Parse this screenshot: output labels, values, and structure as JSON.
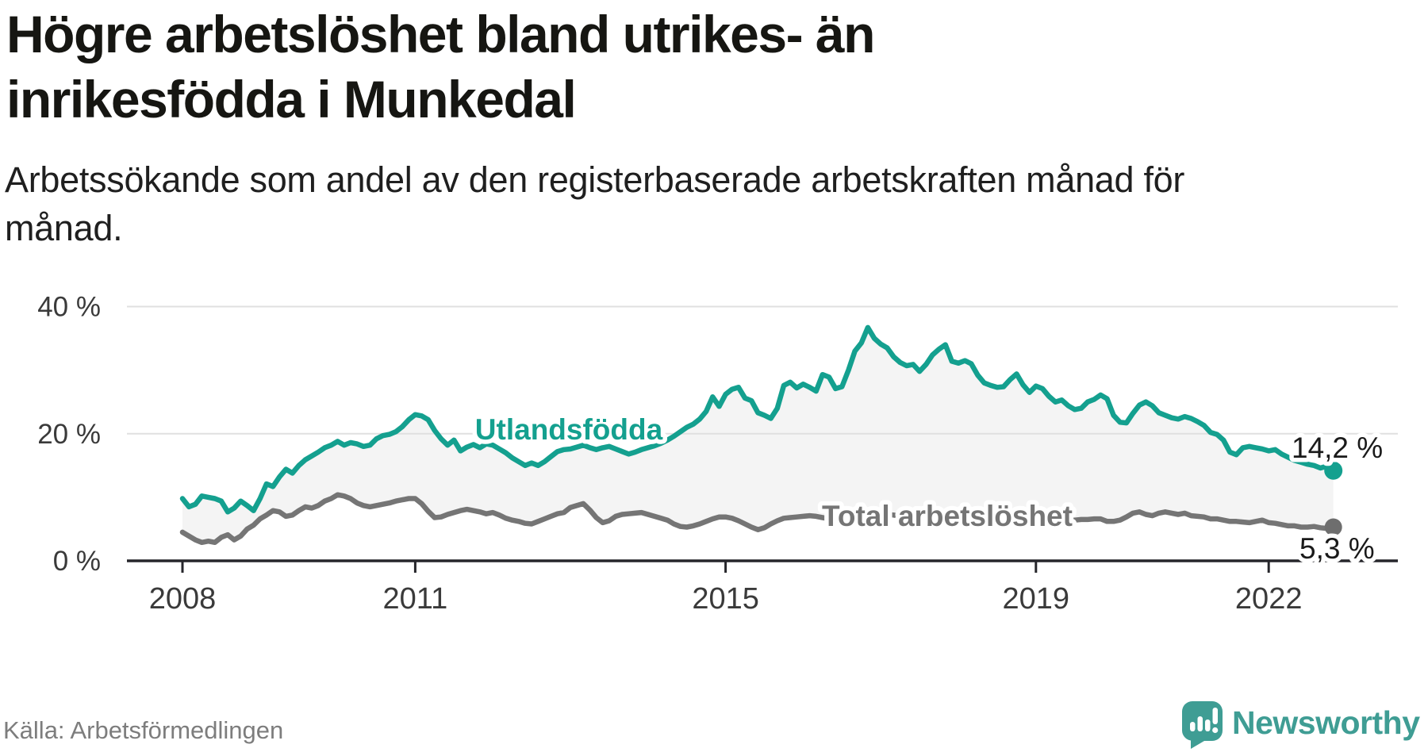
{
  "header": {
    "title_lines": [
      "Högre arbetslöshet bland utrikes- än",
      "inrikesfödda i Munkedal"
    ],
    "subtitle_lines": [
      "Arbetssökande som andel av den registerbaserade arbetskraften månad för",
      "månad."
    ]
  },
  "chart_data": {
    "type": "line",
    "unit": "%",
    "x_start": "2008-01",
    "x_interval": "monthly",
    "x_end": "2022-11",
    "x_ticks": [
      2008,
      2011,
      2015,
      2019,
      2022
    ],
    "y_ticks": [
      0,
      20,
      40
    ],
    "y_tick_suffix": " %",
    "ylim": [
      0,
      40
    ],
    "grid": "horizontal",
    "band_fill_between_series": "#f4f4f4",
    "gridline_color": "#e0e0e0",
    "axis_color": "#26262b",
    "tick_label_color": "#3a3a3a",
    "annotation_color": "#1a1a1a",
    "series": [
      {
        "name": "Utlandsfödda",
        "color": "#14a08f",
        "end_label": "14,2 %",
        "end_value": 14.2,
        "values": [
          9.8,
          8.5,
          8.9,
          10.2,
          10.0,
          9.8,
          9.4,
          7.7,
          8.3,
          9.4,
          8.7,
          7.9,
          9.8,
          12.1,
          11.7,
          13.2,
          14.4,
          13.8,
          15.0,
          15.9,
          16.5,
          17.1,
          17.8,
          18.2,
          18.8,
          18.2,
          18.6,
          18.4,
          18.0,
          18.2,
          19.2,
          19.7,
          19.9,
          20.3,
          21.1,
          22.2,
          23.0,
          22.8,
          22.2,
          20.5,
          19.2,
          18.2,
          19.0,
          17.3,
          17.9,
          18.3,
          17.8,
          18.4,
          18.2,
          17.6,
          17.0,
          16.2,
          15.6,
          15.0,
          15.4,
          15.0,
          15.6,
          16.4,
          17.2,
          17.5,
          17.6,
          17.9,
          18.2,
          17.8,
          17.5,
          17.8,
          18.0,
          17.6,
          17.2,
          16.8,
          17.1,
          17.5,
          17.8,
          18.1,
          18.5,
          19.0,
          19.6,
          20.3,
          21.0,
          21.5,
          22.3,
          23.5,
          25.8,
          24.3,
          26.2,
          27.0,
          27.3,
          25.6,
          25.2,
          23.3,
          22.9,
          22.4,
          24.0,
          27.6,
          28.1,
          27.2,
          27.8,
          27.3,
          26.7,
          29.3,
          28.9,
          27.1,
          27.4,
          30.0,
          33.0,
          34.3,
          36.7,
          35.0,
          34.1,
          33.5,
          32.1,
          31.2,
          30.7,
          30.9,
          29.8,
          30.9,
          32.4,
          33.3,
          34.0,
          31.4,
          31.1,
          31.5,
          31.0,
          29.2,
          28.0,
          27.6,
          27.3,
          27.4,
          28.5,
          29.4,
          27.7,
          26.5,
          27.5,
          27.1,
          25.9,
          25.0,
          25.3,
          24.4,
          23.8,
          24.0,
          25.0,
          25.4,
          26.1,
          25.5,
          22.9,
          21.8,
          21.7,
          23.2,
          24.5,
          25.0,
          24.4,
          23.3,
          22.9,
          22.5,
          22.3,
          22.7,
          22.4,
          21.9,
          21.3,
          20.2,
          19.9,
          19.0,
          17.1,
          16.7,
          17.8,
          18.0,
          17.8,
          17.6,
          17.3,
          17.5,
          16.8,
          16.3,
          15.8,
          15.5,
          15.2,
          15.0,
          14.6,
          14.9,
          14.2
        ]
      },
      {
        "name": "Total arbetslöshet",
        "color": "#757575",
        "end_label": "5,3 %",
        "end_value": 5.3,
        "values": [
          4.5,
          3.9,
          3.3,
          2.9,
          3.1,
          2.9,
          3.7,
          4.1,
          3.3,
          3.9,
          5.0,
          5.6,
          6.6,
          7.2,
          7.9,
          7.7,
          7.0,
          7.2,
          7.9,
          8.5,
          8.3,
          8.7,
          9.4,
          9.8,
          10.4,
          10.2,
          9.8,
          9.1,
          8.7,
          8.5,
          8.7,
          8.9,
          9.1,
          9.4,
          9.6,
          9.8,
          9.8,
          9.0,
          7.8,
          6.8,
          6.9,
          7.3,
          7.6,
          7.9,
          8.1,
          7.9,
          7.7,
          7.4,
          7.6,
          7.2,
          6.7,
          6.4,
          6.2,
          5.9,
          5.8,
          6.2,
          6.6,
          7.0,
          7.4,
          7.6,
          8.4,
          8.7,
          9.0,
          8.0,
          6.8,
          6.0,
          6.3,
          7.0,
          7.3,
          7.4,
          7.5,
          7.6,
          7.3,
          7.0,
          6.7,
          6.4,
          5.8,
          5.4,
          5.3,
          5.5,
          5.8,
          6.2,
          6.6,
          6.9,
          6.9,
          6.7,
          6.3,
          5.8,
          5.3,
          4.9,
          5.2,
          5.8,
          6.3,
          6.7,
          6.8,
          6.9,
          7.0,
          7.1,
          7.0,
          6.8,
          6.6,
          6.5,
          6.6,
          6.8,
          7.0,
          7.2,
          7.3,
          7.4,
          7.4,
          7.3,
          7.2,
          7.0,
          6.9,
          6.8,
          6.9,
          7.0,
          7.2,
          7.3,
          7.4,
          7.5,
          7.4,
          7.2,
          7.0,
          6.8,
          6.6,
          6.5,
          6.4,
          6.5,
          6.6,
          6.7,
          6.8,
          6.9,
          6.9,
          6.8,
          6.7,
          6.6,
          6.5,
          6.4,
          6.4,
          6.5,
          6.5,
          6.6,
          6.6,
          6.2,
          6.2,
          6.4,
          6.9,
          7.5,
          7.7,
          7.3,
          7.1,
          7.5,
          7.7,
          7.5,
          7.3,
          7.5,
          7.1,
          7.0,
          6.9,
          6.6,
          6.6,
          6.4,
          6.2,
          6.2,
          6.1,
          6.0,
          6.2,
          6.4,
          6.0,
          5.9,
          5.7,
          5.5,
          5.5,
          5.3,
          5.3,
          5.4,
          5.2,
          5.1,
          5.3
        ]
      }
    ]
  },
  "footer": {
    "source": "Källa: Arbetsförmedlingen",
    "brand": "Newsworthy"
  }
}
